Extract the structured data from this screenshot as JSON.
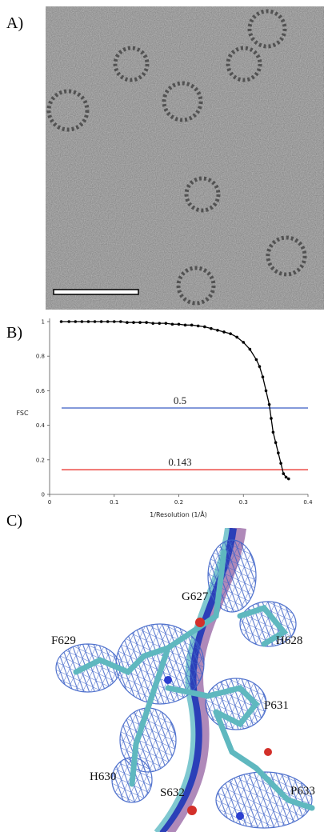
{
  "panel_labels": [
    "A)",
    "B)",
    "C)"
  ],
  "chart_data": {
    "type": "line",
    "xlabel": "1/Resolution (1/Å)",
    "ylabel": "FSC",
    "x": [
      0.018,
      0.03,
      0.04,
      0.05,
      0.06,
      0.07,
      0.08,
      0.09,
      0.1,
      0.11,
      0.12,
      0.13,
      0.14,
      0.15,
      0.16,
      0.17,
      0.18,
      0.19,
      0.2,
      0.21,
      0.22,
      0.23,
      0.24,
      0.25,
      0.26,
      0.27,
      0.28,
      0.29,
      0.3,
      0.31,
      0.32,
      0.325,
      0.33,
      0.335,
      0.34,
      0.343,
      0.346,
      0.35,
      0.354,
      0.358,
      0.362,
      0.366,
      0.37
    ],
    "series": [
      {
        "color": "#000000",
        "values": [
          1,
          1,
          1,
          1,
          1,
          1,
          1,
          1,
          1,
          1,
          0.995,
          0.995,
          0.995,
          0.995,
          0.99,
          0.99,
          0.99,
          0.985,
          0.985,
          0.98,
          0.98,
          0.975,
          0.97,
          0.96,
          0.95,
          0.94,
          0.93,
          0.91,
          0.88,
          0.84,
          0.78,
          0.74,
          0.68,
          0.6,
          0.52,
          0.44,
          0.36,
          0.3,
          0.24,
          0.18,
          0.12,
          0.1,
          0.09
        ]
      }
    ],
    "reference_lines": [
      {
        "value": 0.5,
        "color": "#3b5cc4"
      },
      {
        "value": 0.143,
        "color": "#e8231e"
      }
    ],
    "xlim": [
      0,
      0.4
    ],
    "xticks": [
      0,
      0.1,
      0.2,
      0.3,
      0.4
    ],
    "ylim": [
      0,
      1
    ],
    "yticks": [
      0,
      0.2,
      0.4,
      0.6,
      0.8,
      1
    ]
  },
  "residue_labels": [
    "G627",
    "H628",
    "F629",
    "P631",
    "H630",
    "S632",
    "P633"
  ]
}
